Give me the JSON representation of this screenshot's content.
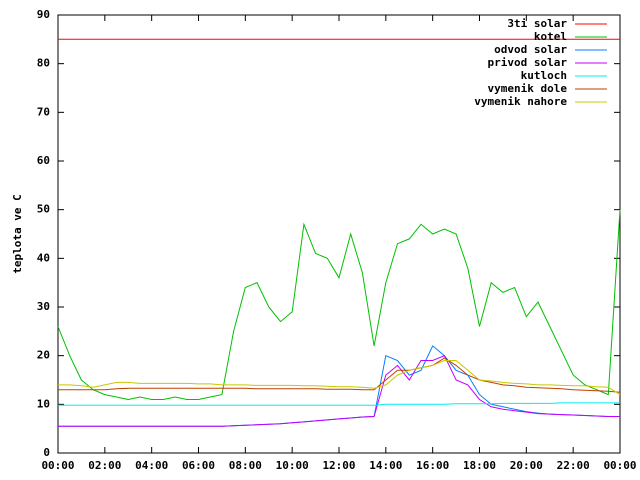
{
  "chart_data": {
    "type": "line",
    "y_label": "teplota ve C",
    "x": [
      0,
      0.5,
      1,
      1.5,
      2,
      2.5,
      3,
      3.5,
      4,
      4.5,
      5,
      5.5,
      6,
      6.5,
      7,
      7.5,
      8,
      8.5,
      9,
      9.5,
      10,
      10.5,
      11,
      11.5,
      12,
      12.5,
      13,
      13.5,
      14,
      14.5,
      15,
      15.5,
      16,
      16.5,
      17,
      17.5,
      18,
      18.5,
      19,
      19.5,
      20,
      20.5,
      21,
      21.5,
      22,
      22.5,
      23,
      23.5,
      24
    ],
    "xlim": [
      0,
      24
    ],
    "xticks": [
      {
        "value": 0,
        "label": "00:00"
      },
      {
        "value": 2,
        "label": "02:00"
      },
      {
        "value": 4,
        "label": "04:00"
      },
      {
        "value": 6,
        "label": "06:00"
      },
      {
        "value": 8,
        "label": "08:00"
      },
      {
        "value": 10,
        "label": "10:00"
      },
      {
        "value": 12,
        "label": "12:00"
      },
      {
        "value": 14,
        "label": "14:00"
      },
      {
        "value": 16,
        "label": "16:00"
      },
      {
        "value": 18,
        "label": "18:00"
      },
      {
        "value": 20,
        "label": "20:00"
      },
      {
        "value": 22,
        "label": "22:00"
      },
      {
        "value": 24,
        "label": "00:00"
      }
    ],
    "ylim": [
      0,
      90
    ],
    "yticks": [
      0,
      10,
      20,
      30,
      40,
      50,
      60,
      70,
      80,
      90
    ],
    "legend_position": "top-right",
    "series": [
      {
        "name": "3ti solar",
        "color": "#ff0000",
        "values": [
          85,
          85,
          85,
          85,
          85,
          85,
          85,
          85,
          85,
          85,
          85,
          85,
          85,
          85,
          85,
          85,
          85,
          85,
          85,
          85,
          85,
          85,
          85,
          85,
          85,
          85,
          85,
          85,
          85,
          85,
          85,
          85,
          85,
          85,
          85,
          85,
          85,
          85,
          85,
          85,
          85,
          85,
          85,
          85,
          85,
          85,
          85,
          85,
          85
        ]
      },
      {
        "name": "kotel",
        "color": "#00c000",
        "values": [
          26,
          20,
          15,
          13,
          12,
          11.5,
          11,
          11.5,
          11,
          11,
          11.5,
          11,
          11,
          11.5,
          12,
          25,
          34,
          35,
          30,
          27,
          29,
          47,
          41,
          40,
          36,
          45,
          37,
          22,
          35,
          43,
          44,
          47,
          45,
          46,
          45,
          38,
          26,
          35,
          33,
          34,
          28,
          31,
          26,
          21,
          16,
          14,
          13,
          12,
          50
        ]
      },
      {
        "name": "odvod solar",
        "color": "#0080ff",
        "values": [
          5.5,
          5.5,
          5.5,
          5.5,
          5.5,
          5.5,
          5.5,
          5.5,
          5.5,
          5.5,
          5.5,
          5.5,
          5.5,
          5.5,
          5.5,
          5.6,
          5.7,
          5.8,
          5.9,
          6,
          6.2,
          6.4,
          6.6,
          6.8,
          7,
          7.2,
          7.4,
          7.5,
          20,
          19,
          16,
          17,
          22,
          20,
          17,
          16,
          12,
          10,
          9.5,
          9,
          8.5,
          8.2,
          8,
          7.9,
          7.8,
          7.7,
          7.6,
          7.5,
          7.5
        ]
      },
      {
        "name": "privod solar",
        "color": "#c000ff",
        "values": [
          5.5,
          5.5,
          5.5,
          5.5,
          5.5,
          5.5,
          5.5,
          5.5,
          5.5,
          5.5,
          5.5,
          5.5,
          5.5,
          5.5,
          5.5,
          5.6,
          5.7,
          5.8,
          5.9,
          6,
          6.2,
          6.4,
          6.6,
          6.8,
          7,
          7.2,
          7.4,
          7.5,
          16,
          18,
          15,
          19,
          19,
          20,
          15,
          14,
          11,
          9.5,
          9,
          8.7,
          8.4,
          8.1,
          8,
          7.9,
          7.8,
          7.7,
          7.6,
          7.5,
          7.5
        ]
      },
      {
        "name": "kutloch",
        "color": "#00eeee",
        "values": [
          9.8,
          9.8,
          9.8,
          9.8,
          9.8,
          9.8,
          9.8,
          9.8,
          9.8,
          9.8,
          9.8,
          9.8,
          9.8,
          9.8,
          9.8,
          9.8,
          9.8,
          9.8,
          9.8,
          9.8,
          9.8,
          9.8,
          9.8,
          9.8,
          9.8,
          9.8,
          9.8,
          9.8,
          10,
          10,
          10,
          10,
          10,
          10,
          10.1,
          10.1,
          10.1,
          10.1,
          10.2,
          10.2,
          10.2,
          10.2,
          10.2,
          10.3,
          10.3,
          10.3,
          10.3,
          10.3,
          10.3
        ]
      },
      {
        "name": "vymenik dole",
        "color": "#c04000",
        "values": [
          13,
          13,
          13,
          13,
          13,
          13.2,
          13.3,
          13.3,
          13.3,
          13.3,
          13.3,
          13.3,
          13.3,
          13.3,
          13.3,
          13.3,
          13.3,
          13.2,
          13.2,
          13.2,
          13.2,
          13.2,
          13.2,
          13.1,
          13.1,
          13.1,
          13,
          13,
          15,
          17,
          17,
          17.5,
          18,
          19.5,
          18,
          16,
          15,
          14.5,
          14,
          13.8,
          13.5,
          13.4,
          13.3,
          13.2,
          13,
          12.9,
          12.8,
          12.7,
          12.5
        ]
      },
      {
        "name": "vymenik nahore",
        "color": "#c8c800",
        "values": [
          14,
          14,
          13.8,
          13.5,
          14,
          14.5,
          14.5,
          14.3,
          14.3,
          14.3,
          14.3,
          14.3,
          14.2,
          14.2,
          14,
          14,
          14,
          13.9,
          13.9,
          13.9,
          13.9,
          13.8,
          13.8,
          13.7,
          13.6,
          13.6,
          13.5,
          13.3,
          14,
          16,
          17,
          17.5,
          18,
          19,
          19,
          17,
          15,
          14.8,
          14.5,
          14.3,
          14.2,
          14,
          14,
          13.9,
          13.8,
          13.8,
          13.6,
          13.5,
          12
        ]
      }
    ]
  }
}
